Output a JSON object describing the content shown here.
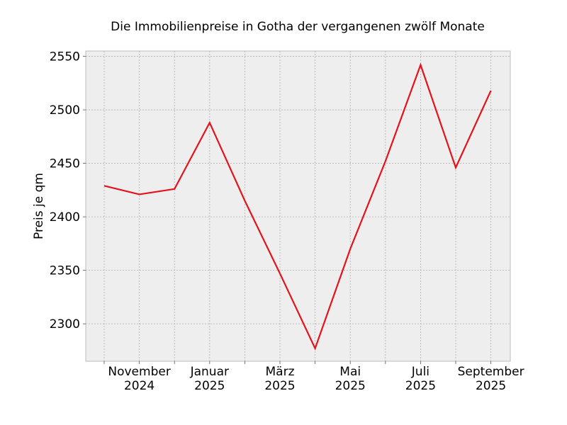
{
  "chart_data": {
    "type": "line",
    "title": "Die Immobilienpreise in Gotha der vergangenen zwölf Monate",
    "xlabel": "",
    "ylabel": "Preis je qm",
    "x": [
      "2024-10",
      "2024-11",
      "2024-12",
      "2025-01",
      "2025-02",
      "2025-03",
      "2025-04",
      "2025-05",
      "2025-06",
      "2025-07",
      "2025-08",
      "2025-09"
    ],
    "series": [
      {
        "values": [
          2429,
          2421,
          2426,
          2488,
          2415,
          2347,
          2277,
          2370,
          2452,
          2542,
          2446,
          2518
        ]
      }
    ],
    "xticks": [
      {
        "x_index": 1,
        "label": [
          "November",
          "2024"
        ]
      },
      {
        "x_index": 3,
        "label": [
          "Januar",
          "2025"
        ]
      },
      {
        "x_index": 5,
        "label": [
          "März",
          "2025"
        ]
      },
      {
        "x_index": 7,
        "label": [
          "Mai",
          "2025"
        ]
      },
      {
        "x_index": 9,
        "label": [
          "Juli",
          "2025"
        ]
      },
      {
        "x_index": 11,
        "label": [
          "September",
          "2025"
        ]
      }
    ],
    "yticks": [
      2300,
      2350,
      2400,
      2450,
      2500,
      2550
    ],
    "ylim": [
      2265,
      2555
    ],
    "grid": true,
    "line_color": "#e3121b",
    "background_color": "#eeeeee"
  }
}
